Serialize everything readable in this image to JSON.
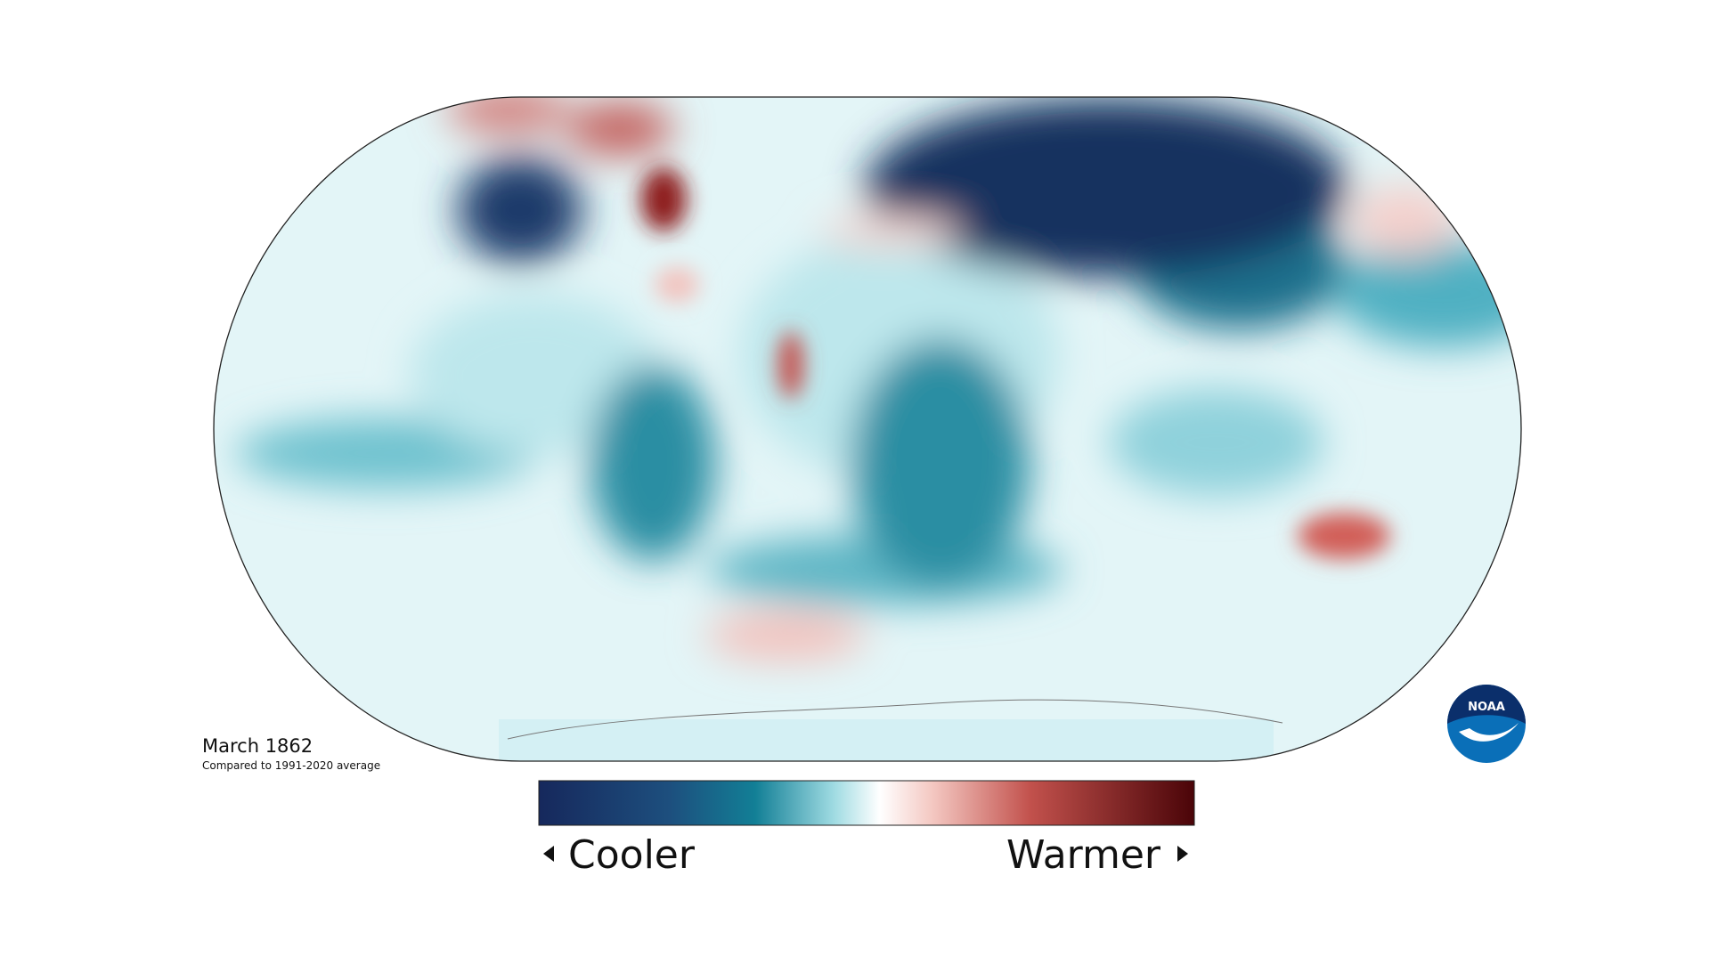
{
  "title": "March 1862",
  "subtitle": "Compared to 1991-2020 average",
  "legend": {
    "low": "Cooler",
    "high": "Warmer"
  },
  "logo": "NOAA"
}
